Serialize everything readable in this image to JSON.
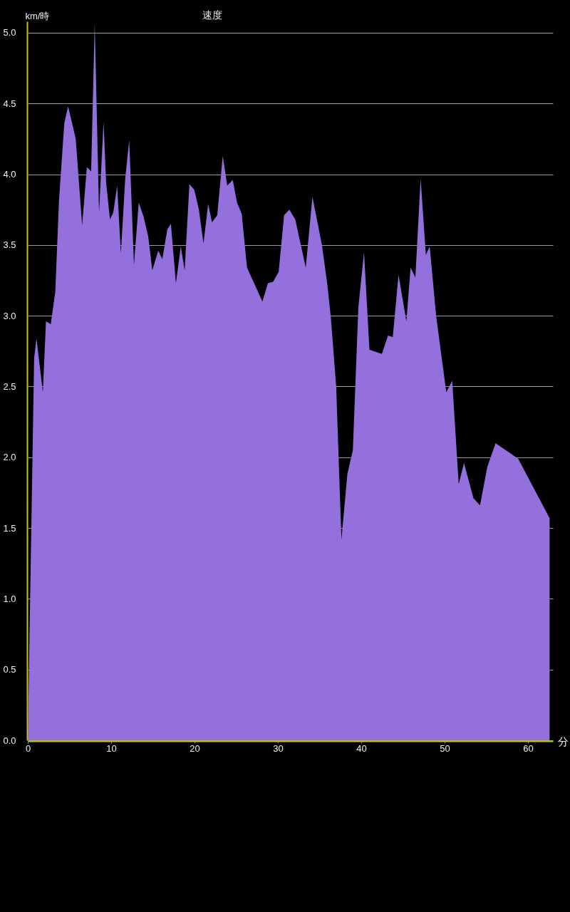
{
  "chart_data": {
    "type": "area",
    "title": "速度",
    "xlabel": "分",
    "ylabel": "km/時",
    "color": "#9370db",
    "x": [
      0,
      0.76,
      1.04,
      1.81,
      2.18,
      2.76,
      3.3,
      3.75,
      4.38,
      4.84,
      5.75,
      6.52,
      7.09,
      7.6,
      8.03,
      8.55,
      9.09,
      9.4,
      9.86,
      10.26,
      10.72,
      11.17,
      11.69,
      12.17,
      12.74,
      13.31,
      13.89,
      14.45,
      14.94,
      15.65,
      16.14,
      16.74,
      17.17,
      17.77,
      18.36,
      18.82,
      19.39,
      19.97,
      20.53,
      21.08,
      21.64,
      22.1,
      22.73,
      23.39,
      23.93,
      24.59,
      25.1,
      25.67,
      26.3,
      28.15,
      28.81,
      29.43,
      30.1,
      30.75,
      31.38,
      32.09,
      33.35,
      34.15,
      35.29,
      35.94,
      36.37,
      37.0,
      37.63,
      38.34,
      39.0,
      39.66,
      40.34,
      40.99,
      42.48,
      43.22,
      43.79,
      44.48,
      45.42,
      45.93,
      46.5,
      47.13,
      47.76,
      48.22,
      48.99,
      50.21,
      50.92,
      51.7,
      52.33,
      53.47,
      54.26,
      55.12,
      56.12,
      58.83,
      62.6
    ],
    "values": [
      0,
      2.7,
      2.84,
      2.46,
      2.96,
      2.94,
      3.17,
      3.82,
      4.36,
      4.48,
      4.25,
      3.64,
      4.05,
      4.02,
      5.07,
      3.73,
      4.37,
      3.94,
      3.68,
      3.73,
      3.92,
      3.44,
      3.97,
      4.24,
      3.36,
      3.8,
      3.7,
      3.56,
      3.32,
      3.46,
      3.4,
      3.61,
      3.65,
      3.23,
      3.49,
      3.32,
      3.93,
      3.89,
      3.75,
      3.51,
      3.79,
      3.66,
      3.71,
      4.13,
      3.92,
      3.96,
      3.8,
      3.72,
      3.34,
      3.1,
      3.23,
      3.24,
      3.31,
      3.71,
      3.75,
      3.68,
      3.34,
      3.84,
      3.5,
      3.22,
      2.98,
      2.5,
      1.42,
      1.88,
      2.05,
      3.06,
      3.45,
      2.76,
      2.73,
      2.86,
      2.85,
      3.29,
      2.96,
      3.34,
      3.27,
      3.97,
      3.43,
      3.49,
      3.0,
      2.46,
      2.54,
      1.81,
      1.96,
      1.71,
      1.66,
      1.93,
      2.1,
      1.99,
      1.57
    ],
    "xlim": [
      0,
      63
    ],
    "ylim": [
      0,
      5.08
    ],
    "xticks": [
      0,
      10,
      20,
      30,
      40,
      50,
      60
    ],
    "yticks": [
      {
        "value": 0,
        "label": "0.0"
      },
      0.5,
      {
        "value": 1,
        "label": "1.0"
      },
      1.5,
      {
        "value": 2,
        "label": "2.0"
      },
      2.5,
      {
        "value": 3,
        "label": "3.0"
      },
      3.5,
      {
        "value": 4,
        "label": "4.0"
      },
      4.5,
      {
        "value": 5,
        "label": "5.0"
      }
    ],
    "grid": "y"
  }
}
